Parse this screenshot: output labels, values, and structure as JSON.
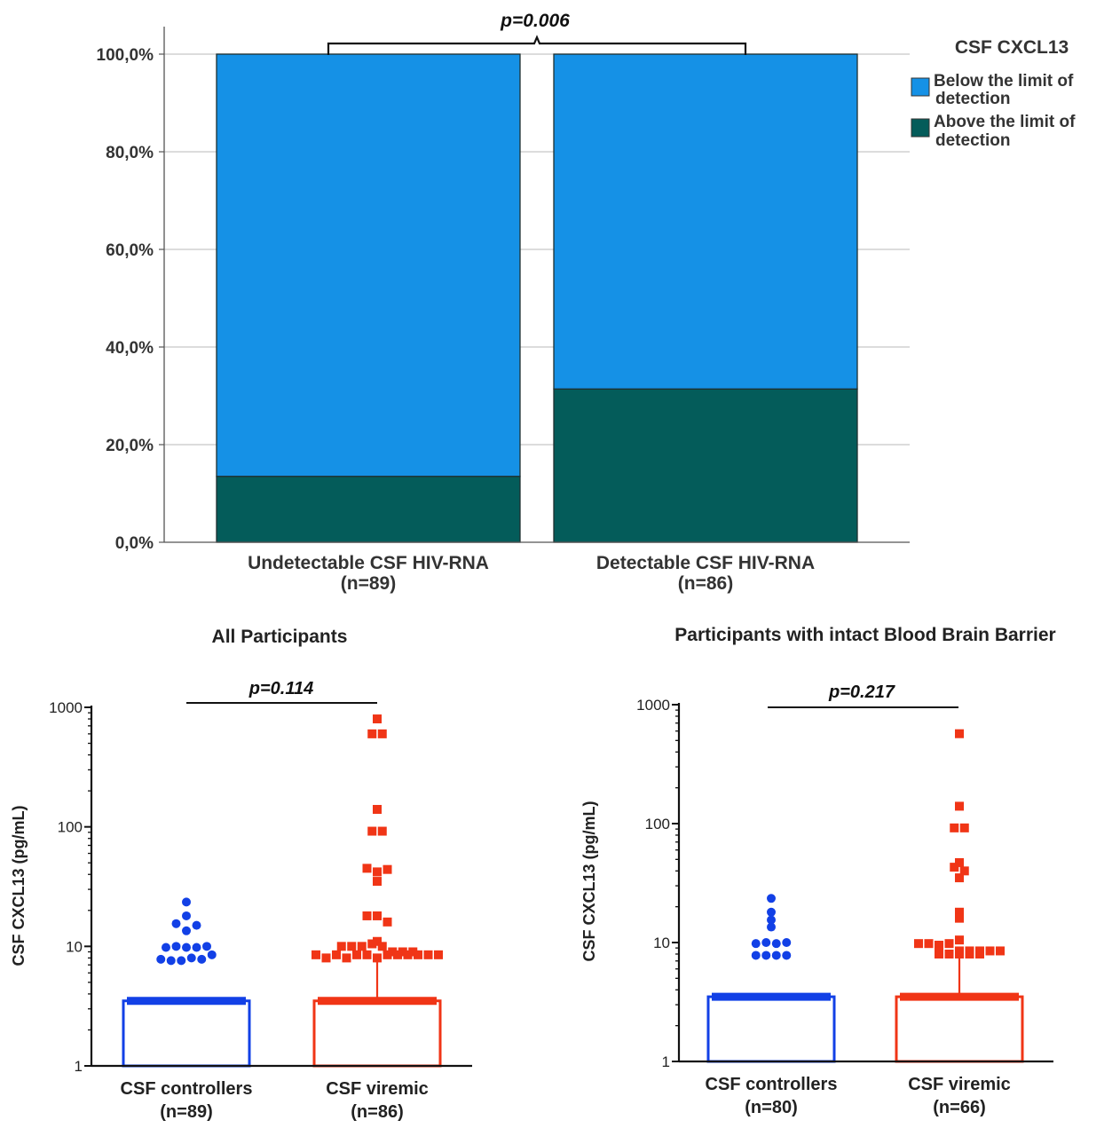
{
  "chart_data": [
    {
      "type": "bar",
      "stacked": true,
      "categories": [
        "Undetectable CSF HIV-RNA",
        "Detectable CSF HIV-RNA"
      ],
      "category_counts": [
        "(n=89)",
        "(n=86)"
      ],
      "series": [
        {
          "name": "Above the limit of detection",
          "values": [
            13.5,
            31.4
          ],
          "color": "#045c5a"
        },
        {
          "name": "Below the limit of detection",
          "values": [
            86.5,
            68.6
          ],
          "color": "#1591e6"
        }
      ],
      "legend_title": "CSF CXCL13",
      "legend_labels": [
        {
          "line1": "Below the limit of",
          "line2": "detection",
          "color": "#1591e6"
        },
        {
          "line1": "Above the limit of",
          "line2": "detection",
          "color": "#045c5a"
        }
      ],
      "ylim": [
        0,
        100
      ],
      "yticks": [
        "0,0%",
        "20,0%",
        "40,0%",
        "60,0%",
        "80,0%",
        "100,0%"
      ],
      "grid": true,
      "legend_position": "right",
      "annotation": "p=0.006"
    },
    {
      "type": "scatter",
      "title": "All Participants",
      "ylabel": "CSF CXCL13 (pg/mL)",
      "yscale": "log",
      "ylim": [
        1,
        1000
      ],
      "yticks": [
        "1",
        "10",
        "100",
        "1000"
      ],
      "annotation": "p=0.114",
      "groups": [
        {
          "name": "CSF controllers",
          "count": "(n=89)",
          "color": "#1240e6",
          "marker": "circle",
          "bar": 3.5,
          "error_top": 3.5,
          "points": [
            23.5,
            15.5,
            18,
            13.5,
            15,
            9.8,
            10,
            9.8,
            9.8,
            10,
            7.8,
            7.6,
            7.6,
            8,
            7.8,
            8.5
          ]
        },
        {
          "name": "CSF viremic",
          "count": "(n=86)",
          "color": "#f03516",
          "marker": "square",
          "bar": 3.5,
          "error_top": 7.5,
          "points": [
            800,
            600,
            600,
            140,
            92,
            92,
            45,
            42,
            35,
            44,
            18,
            18,
            16,
            11,
            10,
            10,
            10,
            10.5,
            10,
            9,
            8.5,
            9,
            8,
            8.5,
            8,
            8.5,
            8.5,
            8,
            8.5,
            8.5,
            8.5,
            8.5,
            8.5,
            8.5,
            9
          ]
        }
      ]
    },
    {
      "type": "scatter",
      "title": "Participants with intact Blood Brain Barrier",
      "ylabel": "CSF CXCL13 (pg/mL)",
      "yscale": "log",
      "ylim": [
        1,
        1000
      ],
      "yticks": [
        "1",
        "10",
        "100",
        "1000"
      ],
      "annotation": "p=0.217",
      "groups": [
        {
          "name": "CSF controllers",
          "count": "(n=80)",
          "color": "#1240e6",
          "marker": "circle",
          "bar": 3.5,
          "error_top": 3.5,
          "points": [
            23.5,
            18,
            15.5,
            13.5,
            9.8,
            10,
            9.8,
            10,
            7.8,
            7.8,
            7.8,
            7.8
          ]
        },
        {
          "name": "CSF viremic",
          "count": "(n=66)",
          "color": "#f03516",
          "marker": "square",
          "bar": 3.5,
          "error_top": 7.3,
          "points": [
            570,
            140,
            92,
            92,
            47,
            43,
            35,
            40,
            18,
            16,
            10.5,
            9.8,
            9.8,
            9.5,
            9.8,
            8.5,
            8.5,
            8.5,
            8.5,
            8,
            8.5,
            8,
            8,
            8,
            8
          ]
        }
      ]
    }
  ]
}
